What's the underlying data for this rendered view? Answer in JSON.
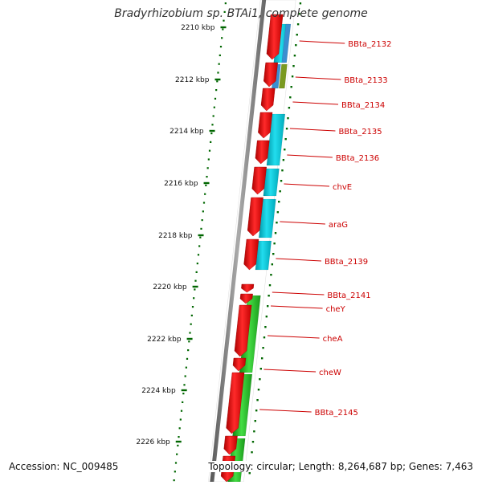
{
  "title": "Bradyrhizobium sp. BTAi1, complete genome",
  "footer": {
    "accession": "Accession: NC_009485",
    "summary": "Topology: circular; Length: 8,264,687 bp; Genes: 7,463"
  },
  "ruler": {
    "unit": "kbp",
    "ticks": [
      "2210 kbp",
      "2212 kbp",
      "2214 kbp",
      "2216 kbp",
      "2218 kbp",
      "2220 kbp",
      "2222 kbp",
      "2224 kbp",
      "2226 kbp"
    ]
  },
  "colors": {
    "gene": "#ff0000",
    "cds_cyan": "#00ccdd",
    "cds_blue": "#3a8fd0",
    "cds_olive": "#7a9a20",
    "cds_green": "#22bb22",
    "backbone": "#777777",
    "ruler": "#006600",
    "label": "#cc0000"
  },
  "genes": [
    {
      "label": "BBta_2132",
      "track": "cyan"
    },
    {
      "label": "BBta_2133",
      "track": "blue/olive"
    },
    {
      "label": "BBta_2134",
      "track": "none"
    },
    {
      "label": "BBta_2135",
      "track": "cyan"
    },
    {
      "label": "BBta_2136",
      "track": "cyan"
    },
    {
      "label": "chvE",
      "track": "cyan"
    },
    {
      "label": "araG",
      "track": "cyan"
    },
    {
      "label": "BBta_2139",
      "track": "cyan"
    },
    {
      "label": "BBta_2141",
      "track": "none"
    },
    {
      "label": "cheY",
      "track": "green"
    },
    {
      "label": "cheA",
      "track": "green"
    },
    {
      "label": "cheW",
      "track": "green"
    },
    {
      "label": "BBta_2145",
      "track": "green"
    }
  ]
}
